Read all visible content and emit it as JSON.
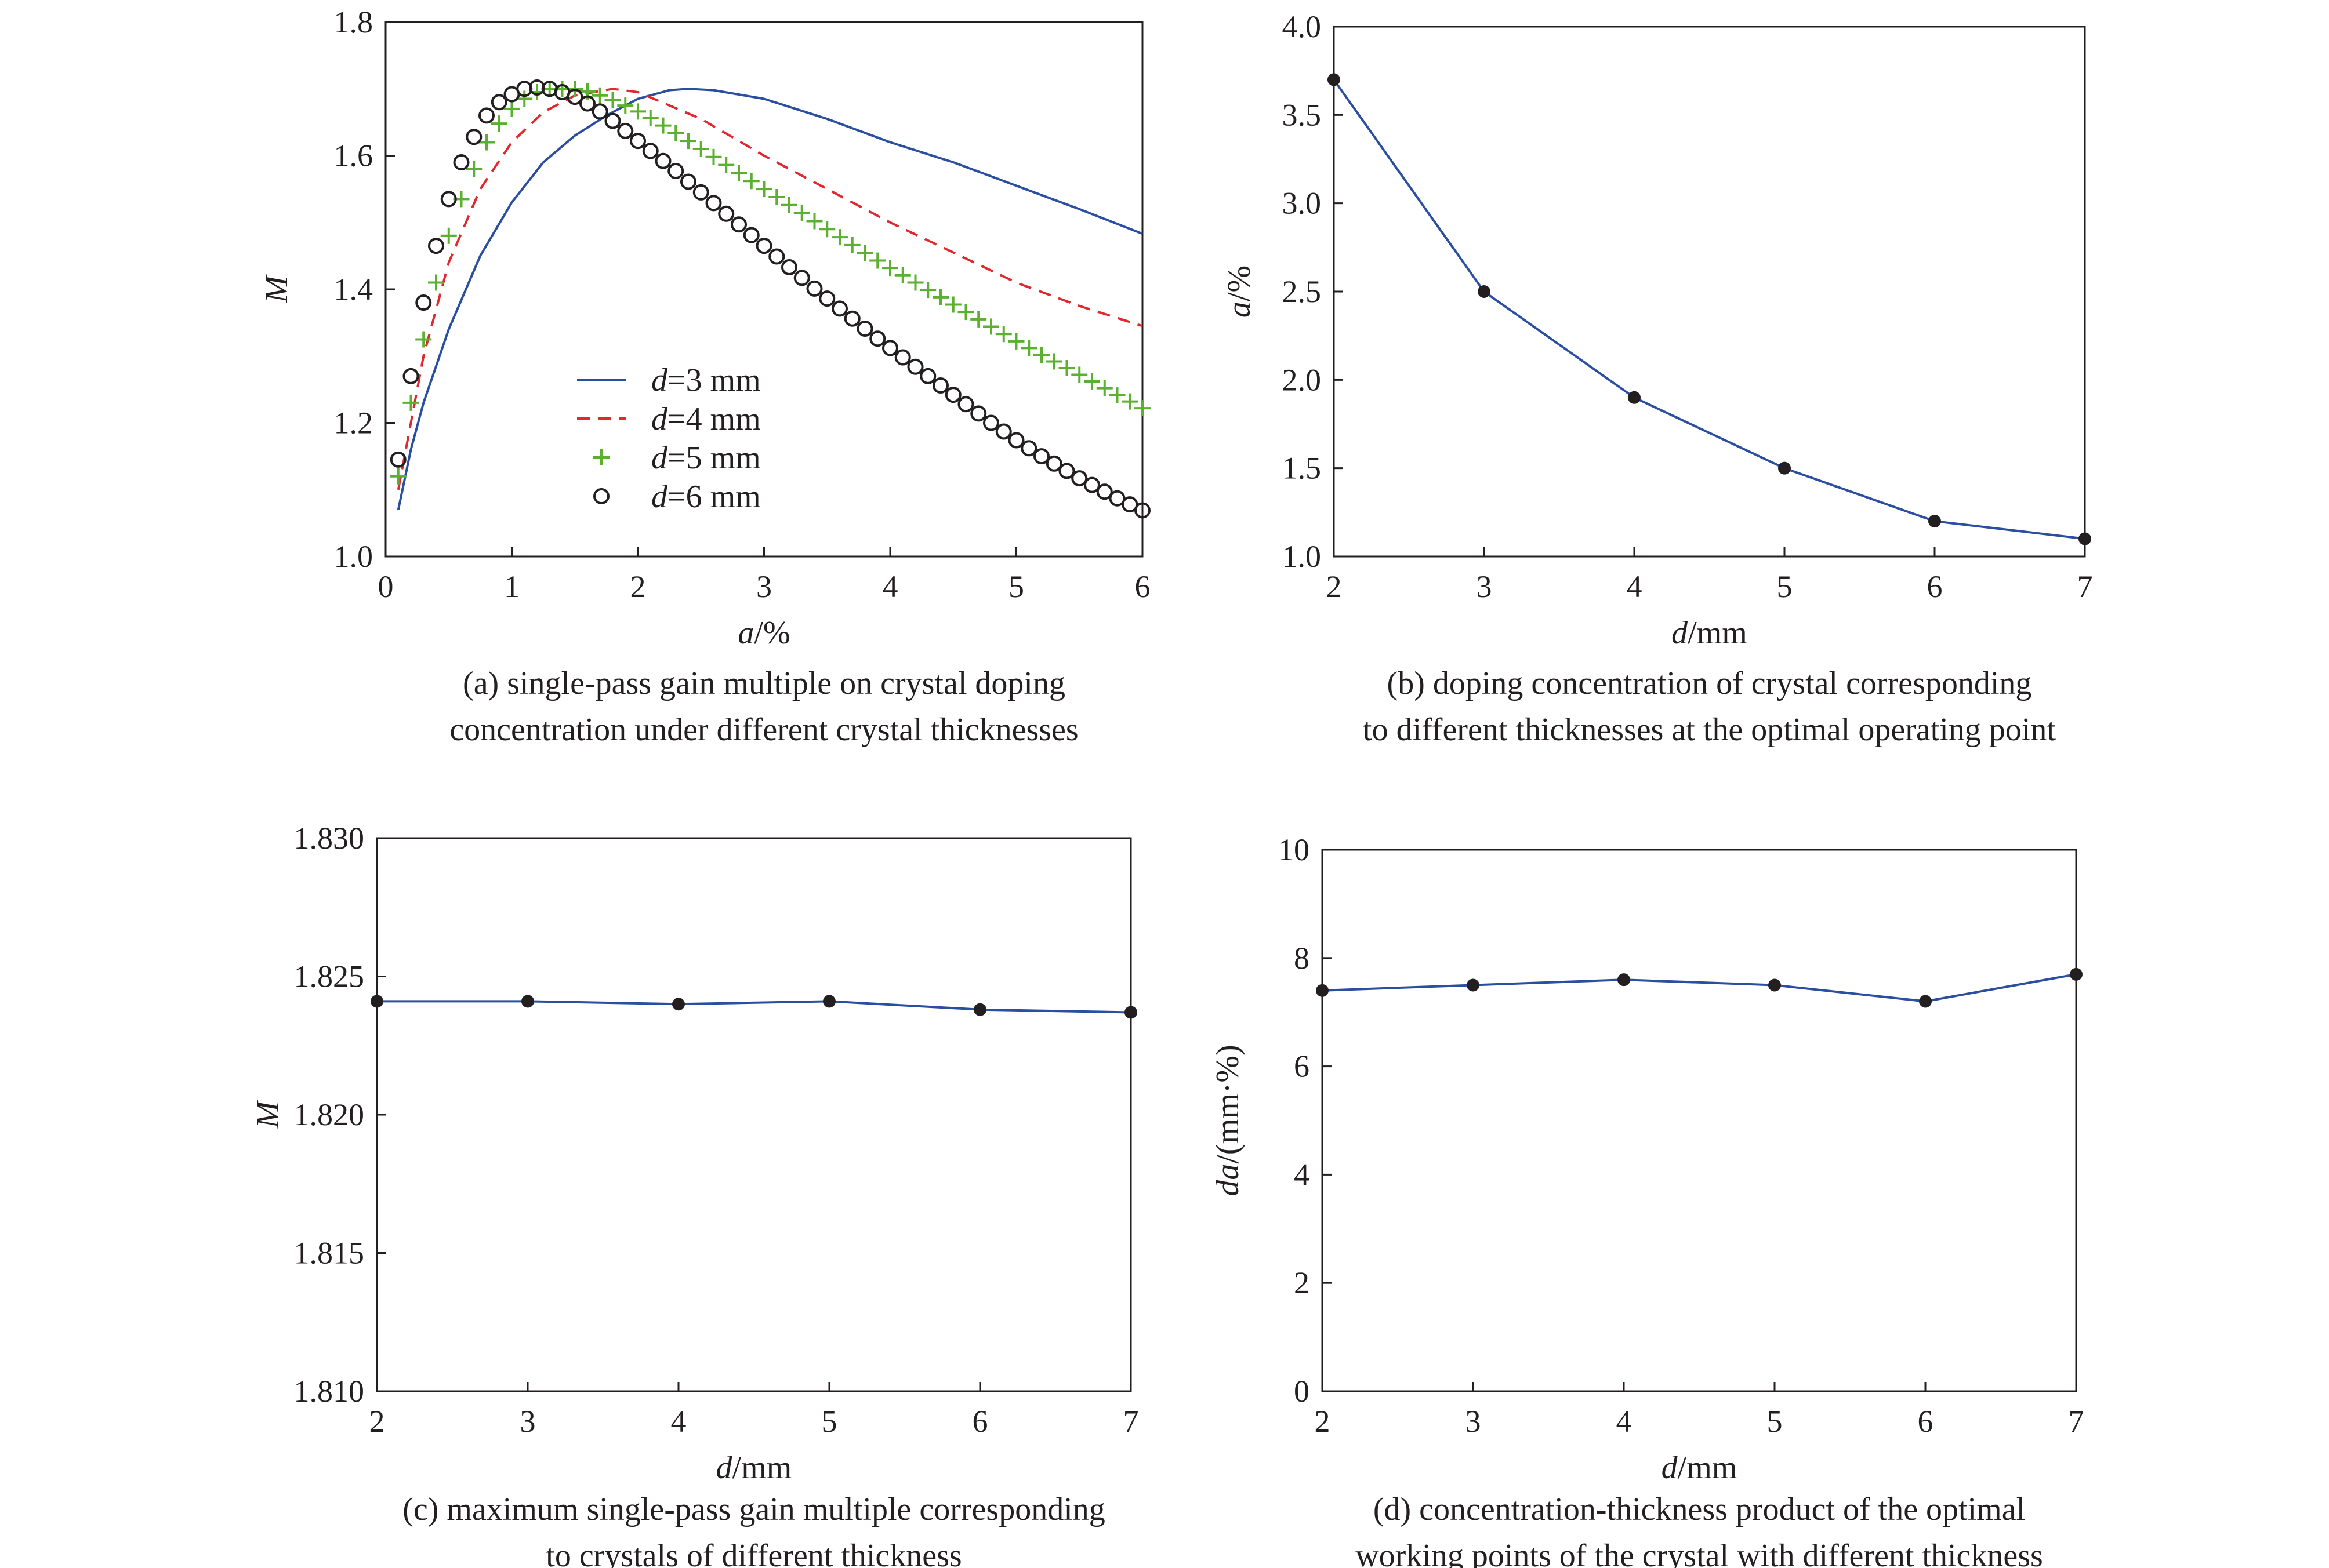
{
  "colors": {
    "blue": "#2b4fa0",
    "red": "#e0282e",
    "green": "#5cb030",
    "black": "#231f20",
    "marker": "#231f20"
  },
  "chart_data": [
    {
      "id": "a",
      "type": "line",
      "xlabel_italic": "a",
      "xlabel_rest": "/%",
      "ylabel": "M",
      "xlim": [
        0,
        6
      ],
      "ylim": [
        1.0,
        1.8
      ],
      "xticks": [
        "0",
        "1",
        "2",
        "3",
        "4",
        "5",
        "6"
      ],
      "yticks": [
        "1.0",
        "1.2",
        "1.4",
        "1.6",
        "1.8"
      ],
      "grid": false,
      "legend_position": "center-left",
      "caption": [
        "(a) single-pass gain multiple on crystal doping",
        "concentration under different crystal thicknesses"
      ],
      "series": [
        {
          "name": "=3 mm",
          "name_italic": "d",
          "style": "solid",
          "color": "#2b4fa0",
          "x": [
            0.1,
            0.2,
            0.3,
            0.5,
            0.75,
            1.0,
            1.25,
            1.5,
            1.75,
            2.0,
            2.25,
            2.4,
            2.6,
            3.0,
            3.5,
            4.0,
            4.5,
            5.0,
            5.5,
            6.0
          ],
          "y": [
            1.07,
            1.16,
            1.23,
            1.34,
            1.45,
            1.53,
            1.59,
            1.63,
            1.66,
            1.685,
            1.698,
            1.7,
            1.698,
            1.685,
            1.655,
            1.62,
            1.59,
            1.555,
            1.52,
            1.483
          ]
        },
        {
          "name": "=4 mm",
          "name_italic": "d",
          "style": "dashed",
          "color": "#e0282e",
          "x": [
            0.1,
            0.2,
            0.3,
            0.5,
            0.75,
            1.0,
            1.25,
            1.5,
            1.8,
            2.0,
            2.5,
            3.0,
            3.5,
            4.0,
            4.5,
            5.0,
            5.5,
            6.0
          ],
          "y": [
            1.1,
            1.2,
            1.3,
            1.44,
            1.55,
            1.62,
            1.665,
            1.69,
            1.7,
            1.695,
            1.655,
            1.6,
            1.55,
            1.5,
            1.455,
            1.41,
            1.375,
            1.345
          ]
        },
        {
          "name": "=5 mm",
          "name_italic": "d",
          "style": "plus",
          "color": "#5cb030",
          "x": [
            0.1,
            0.2,
            0.3,
            0.4,
            0.5,
            0.6,
            0.7,
            0.8,
            0.9,
            1.0,
            1.1,
            1.2,
            1.3,
            1.4,
            1.5,
            1.6,
            1.7,
            1.8,
            1.9,
            2.0,
            2.1,
            2.2,
            2.3,
            2.4,
            2.5,
            2.6,
            2.7,
            2.8,
            2.9,
            3.0,
            3.1,
            3.2,
            3.3,
            3.4,
            3.5,
            3.6,
            3.7,
            3.8,
            3.9,
            4.0,
            4.1,
            4.2,
            4.3,
            4.4,
            4.5,
            4.6,
            4.7,
            4.8,
            4.9,
            5.0,
            5.1,
            5.2,
            5.3,
            5.4,
            5.5,
            5.6,
            5.7,
            5.8,
            5.9,
            6.0
          ],
          "y": [
            1.12,
            1.23,
            1.325,
            1.41,
            1.48,
            1.535,
            1.58,
            1.62,
            1.648,
            1.67,
            1.685,
            1.695,
            1.7,
            1.7,
            1.7,
            1.696,
            1.69,
            1.683,
            1.675,
            1.666,
            1.656,
            1.645,
            1.634,
            1.622,
            1.61,
            1.598,
            1.586,
            1.574,
            1.562,
            1.55,
            1.538,
            1.526,
            1.514,
            1.502,
            1.49,
            1.478,
            1.466,
            1.454,
            1.443,
            1.432,
            1.421,
            1.41,
            1.399,
            1.388,
            1.377,
            1.366,
            1.355,
            1.344,
            1.333,
            1.322,
            1.312,
            1.302,
            1.292,
            1.282,
            1.272,
            1.262,
            1.252,
            1.242,
            1.232,
            1.222
          ]
        },
        {
          "name": "=6 mm",
          "name_italic": "d",
          "style": "circle",
          "color": "#231f20",
          "x": [
            0.1,
            0.2,
            0.3,
            0.4,
            0.5,
            0.6,
            0.7,
            0.8,
            0.9,
            1.0,
            1.1,
            1.2,
            1.3,
            1.4,
            1.5,
            1.6,
            1.7,
            1.8,
            1.9,
            2.0,
            2.1,
            2.2,
            2.3,
            2.4,
            2.5,
            2.6,
            2.7,
            2.8,
            2.9,
            3.0,
            3.1,
            3.2,
            3.3,
            3.4,
            3.5,
            3.6,
            3.7,
            3.8,
            3.9,
            4.0,
            4.1,
            4.2,
            4.3,
            4.4,
            4.5,
            4.6,
            4.7,
            4.8,
            4.9,
            5.0,
            5.1,
            5.2,
            5.3,
            5.4,
            5.5,
            5.6,
            5.7,
            5.8,
            5.9,
            6.0
          ],
          "y": [
            1.145,
            1.27,
            1.38,
            1.465,
            1.535,
            1.59,
            1.628,
            1.66,
            1.68,
            1.692,
            1.7,
            1.702,
            1.7,
            1.695,
            1.688,
            1.678,
            1.666,
            1.652,
            1.637,
            1.622,
            1.607,
            1.592,
            1.577,
            1.561,
            1.545,
            1.529,
            1.513,
            1.497,
            1.481,
            1.465,
            1.449,
            1.433,
            1.417,
            1.401,
            1.386,
            1.371,
            1.356,
            1.341,
            1.326,
            1.312,
            1.298,
            1.284,
            1.27,
            1.256,
            1.242,
            1.228,
            1.214,
            1.2,
            1.187,
            1.174,
            1.162,
            1.15,
            1.139,
            1.128,
            1.117,
            1.107,
            1.097,
            1.087,
            1.078,
            1.069
          ]
        }
      ]
    },
    {
      "id": "b",
      "type": "line",
      "xlabel_italic": "d",
      "xlabel_rest": "/mm",
      "ylabel_italic": "a",
      "ylabel_rest": "/%",
      "xlim": [
        2,
        7
      ],
      "ylim": [
        1.0,
        4.0
      ],
      "xticks": [
        "2",
        "3",
        "4",
        "5",
        "6",
        "7"
      ],
      "yticks": [
        "1.0",
        "1.5",
        "2.0",
        "2.5",
        "3.0",
        "3.5",
        "4.0"
      ],
      "grid": false,
      "caption": [
        "(b) doping concentration of crystal corresponding",
        "to different thicknesses at the optimal operating point"
      ],
      "series": [
        {
          "x": [
            2,
            3,
            4,
            5,
            6,
            7
          ],
          "y": [
            3.7,
            2.5,
            1.9,
            1.5,
            1.2,
            1.1
          ],
          "color": "#2b4fa0"
        }
      ]
    },
    {
      "id": "c",
      "type": "line",
      "xlabel_italic": "d",
      "xlabel_rest": "/mm",
      "ylabel": "M",
      "xlim": [
        2,
        7
      ],
      "ylim": [
        1.81,
        1.83
      ],
      "xticks": [
        "2",
        "3",
        "4",
        "5",
        "6",
        "7"
      ],
      "yticks": [
        "1.810",
        "1.815",
        "1.820",
        "1.825",
        "1.830"
      ],
      "grid": false,
      "caption": [
        "(c) maximum single-pass gain multiple corresponding",
        "to crystals of different thickness"
      ],
      "series": [
        {
          "x": [
            2,
            3,
            4,
            5,
            6,
            7
          ],
          "y": [
            1.8241,
            1.8241,
            1.824,
            1.8241,
            1.8238,
            1.8237
          ],
          "color": "#2b4fa0"
        }
      ]
    },
    {
      "id": "d",
      "type": "line",
      "xlabel_italic": "d",
      "xlabel_rest": "/mm",
      "ylabel_italic": "da",
      "ylabel_rest": "/(mm·%)",
      "xlim": [
        2,
        7
      ],
      "ylim": [
        0,
        10
      ],
      "xticks": [
        "2",
        "3",
        "4",
        "5",
        "6",
        "7"
      ],
      "yticks": [
        "0",
        "2",
        "4",
        "6",
        "8",
        "10"
      ],
      "grid": false,
      "caption": [
        "(d) concentration-thickness product of the optimal",
        "working points of the crystal with different thickness"
      ],
      "series": [
        {
          "x": [
            2,
            3,
            4,
            5,
            6,
            7
          ],
          "y": [
            7.4,
            7.5,
            7.6,
            7.5,
            7.2,
            7.7
          ],
          "color": "#2b4fa0"
        }
      ]
    }
  ]
}
